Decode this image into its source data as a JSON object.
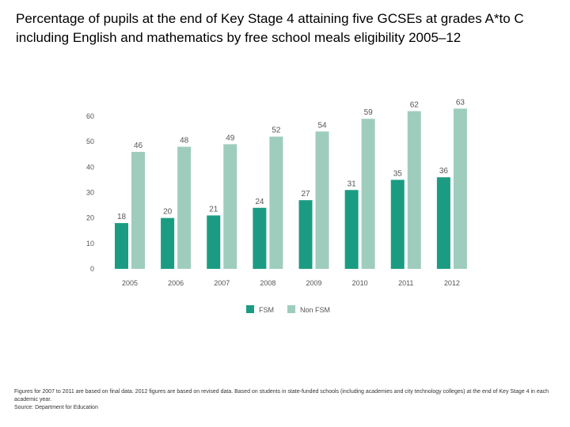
{
  "title": "Percentage of pupils at the end of Key Stage 4 attaining five GCSEs at grades A*to C including English and mathematics by free school meals eligibility 2005–12",
  "footer": {
    "note": "Figures for 2007 to 2011 are based on final data. 2012 figures are based on revised data. Based on students in state-funded schools (including academies and city technology colleges) at the end of Key Stage 4 in each academic year.",
    "source": "Source: Department for Education"
  },
  "colors": {
    "fsm": "#1b9c82",
    "non_fsm": "#9fcdbd"
  },
  "chart_data": {
    "type": "bar",
    "title": "",
    "xlabel": "",
    "ylabel": "",
    "ylim": [
      0,
      60
    ],
    "yticks": [
      0,
      10,
      20,
      30,
      40,
      50,
      60
    ],
    "categories": [
      "2005",
      "2006",
      "2007",
      "2008",
      "2009",
      "2010",
      "2011",
      "2012"
    ],
    "series": [
      {
        "name": "FSM",
        "values": [
          18,
          20,
          21,
          24,
          27,
          31,
          35,
          36
        ]
      },
      {
        "name": "Non FSM",
        "values": [
          46,
          48,
          49,
          52,
          54,
          59,
          62,
          63
        ]
      }
    ],
    "legend": "bottom"
  }
}
